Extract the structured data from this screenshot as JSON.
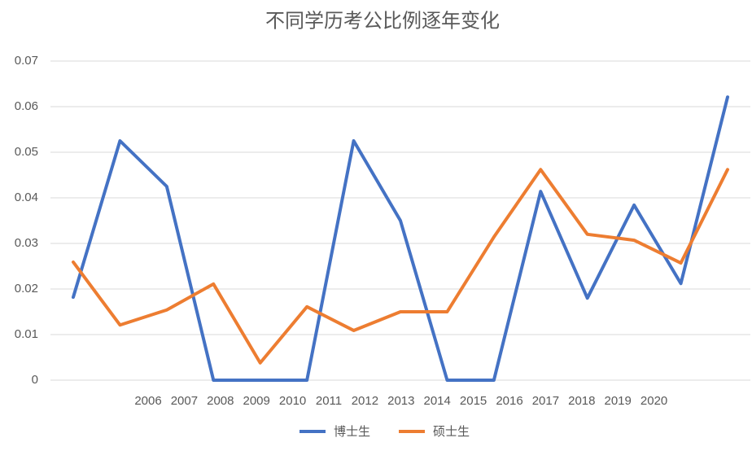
{
  "chart_data": {
    "type": "line",
    "title": "不同学历考公比例逐年变化",
    "categories": [
      "2006",
      "2007",
      "2008",
      "2009",
      "2010",
      "2011",
      "2012",
      "2013",
      "2014",
      "2015",
      "2016",
      "2017",
      "2018",
      "2019",
      "2020"
    ],
    "series": [
      {
        "name": "博士生",
        "color": "#4472c4",
        "values": [
          0.0182,
          0.0525,
          0.0425,
          0,
          0,
          0,
          0.0525,
          0.035,
          0,
          0,
          0.0414,
          0.018,
          0.0384,
          0.0212,
          0.0621
        ]
      },
      {
        "name": "硕士生",
        "color": "#ed7d31",
        "values": [
          0.0259,
          0.0121,
          0.0154,
          0.0211,
          0.0038,
          0.0161,
          0.0109,
          0.015,
          0.015,
          0.0314,
          0.0462,
          0.032,
          0.0307,
          0.0257,
          0.0462
        ]
      }
    ],
    "ylim": [
      0,
      0.07
    ],
    "yticks": [
      0,
      0.01,
      0.02,
      0.03,
      0.04,
      0.05,
      0.06,
      0.07
    ],
    "grid": true,
    "legend": "bottom"
  }
}
